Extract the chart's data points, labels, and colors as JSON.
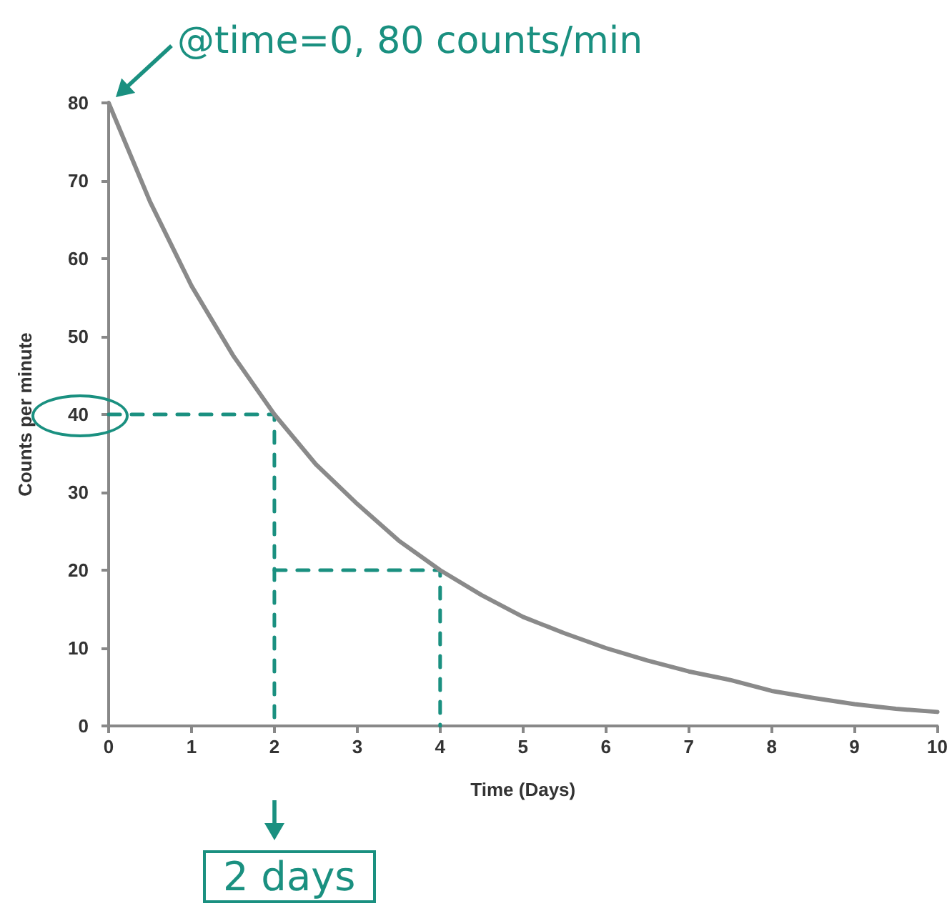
{
  "chart_data": {
    "type": "line",
    "xlabel": "Time (Days)",
    "ylabel": "Counts per minute",
    "x": [
      0,
      0.5,
      1,
      1.5,
      2,
      2.5,
      3,
      3.5,
      4,
      4.5,
      5,
      5.5,
      6,
      6.5,
      7,
      7.5,
      8,
      8.5,
      9,
      9.5,
      10
    ],
    "series": [
      {
        "color": "#8a8a8a",
        "values": [
          80,
          67.3,
          56.5,
          47.6,
          40,
          33.6,
          28.5,
          23.8,
          20,
          16.8,
          14,
          11.9,
          10,
          8.4,
          7,
          5.9,
          4.5,
          3.6,
          2.8,
          2.2,
          1.8
        ]
      },
      {
        "type": "line",
        "color": "#1a9080",
        "line_style": "dashed",
        "x": [
          0,
          2,
          2
        ],
        "values": [
          40,
          40,
          0
        ]
      },
      {
        "type": "line",
        "color": "#1a9080",
        "line_style": "dashed",
        "x": [
          2,
          4,
          4
        ],
        "values": [
          20,
          20,
          0
        ]
      }
    ],
    "xlim": [
      0,
      10
    ],
    "xticks": [
      0,
      1,
      2,
      3,
      4,
      5,
      6,
      7,
      8,
      9,
      10
    ],
    "ylim": [
      0,
      80
    ],
    "yticks": [
      0,
      10,
      20,
      30,
      40,
      50,
      60,
      70,
      80
    ],
    "grid": false,
    "marker": "none",
    "line_style": "solid",
    "annotations": [
      {
        "text": "@time=0, 80 counts/min",
        "x": 0,
        "y": 80
      },
      "2 days"
    ]
  }
}
